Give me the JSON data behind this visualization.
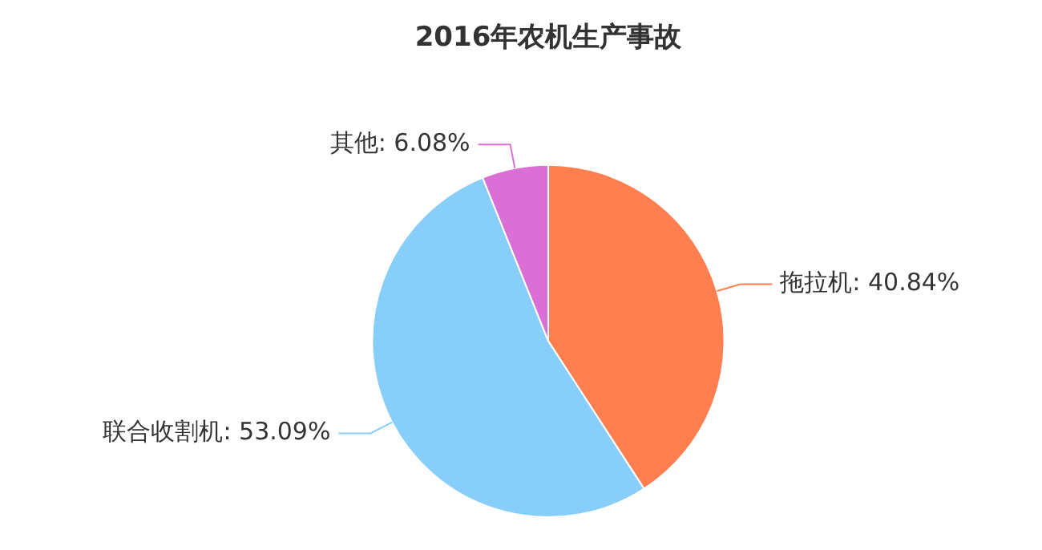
{
  "chart_data": {
    "type": "pie",
    "title": "2016年农机生产事故",
    "categories": [
      "拖拉机",
      "联合收割机",
      "其他"
    ],
    "values": [
      40.84,
      53.09,
      6.08
    ],
    "value_labels": [
      "40.84%",
      "53.09%",
      "6.08%"
    ],
    "colors": [
      "#ff7f50",
      "#87cefa",
      "#da70d6"
    ],
    "legend": false
  }
}
